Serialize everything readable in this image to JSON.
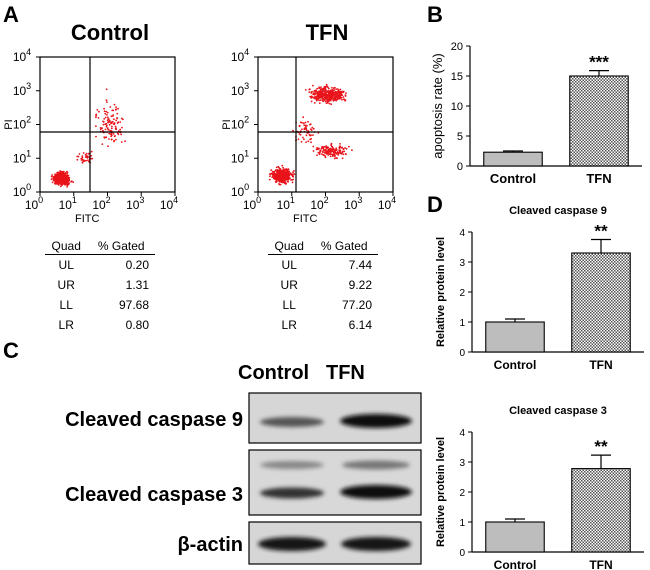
{
  "panels": {
    "a": "A",
    "b": "B",
    "c": "C",
    "d": "D"
  },
  "flow": {
    "xlabel": "FITC",
    "ylabel": "PI",
    "tick_base": "10",
    "tick_exps": [
      "0",
      "1",
      "2",
      "3",
      "4"
    ],
    "table_header": {
      "quad": "Quad",
      "gated": "% Gated"
    },
    "plots": [
      {
        "title": "Control",
        "rows": [
          [
            "UL",
            "0.20"
          ],
          [
            "UR",
            "1.31"
          ],
          [
            "LL",
            "97.68"
          ],
          [
            "LR",
            "0.80"
          ]
        ]
      },
      {
        "title": "TFN",
        "rows": [
          [
            "UL",
            "7.44"
          ],
          [
            "UR",
            "9.22"
          ],
          [
            "LL",
            "77.20"
          ],
          [
            "LR",
            "6.14"
          ]
        ]
      }
    ]
  },
  "blot": {
    "columns": [
      "Control",
      "TFN"
    ],
    "rows": [
      "Cleaved caspase 9",
      "Cleaved caspase 3",
      "β-actin"
    ]
  },
  "chart_data": [
    {
      "type": "bar",
      "categories": [
        "Control",
        "TFN"
      ],
      "values": [
        2.3,
        15.0
      ],
      "errors": [
        0.2,
        0.9
      ],
      "annotations": [
        "",
        "***"
      ],
      "title": "",
      "xlabel": "",
      "ylabel": "apoptosis rate (%)",
      "ylim": [
        0,
        20
      ],
      "yticks": [
        0,
        5,
        10,
        15,
        20
      ]
    },
    {
      "type": "bar",
      "categories": [
        "Control",
        "TFN"
      ],
      "values": [
        1.0,
        3.3
      ],
      "errors": [
        0.1,
        0.45
      ],
      "annotations": [
        "",
        "**"
      ],
      "title": "Cleaved caspase 9",
      "xlabel": "",
      "ylabel": "Relative protein level",
      "ylim": [
        0,
        4
      ],
      "yticks": [
        0,
        1,
        2,
        3,
        4
      ]
    },
    {
      "type": "bar",
      "categories": [
        "Control",
        "TFN"
      ],
      "values": [
        1.0,
        2.78
      ],
      "errors": [
        0.1,
        0.45
      ],
      "annotations": [
        "",
        "**"
      ],
      "title": "Cleaved caspase 3",
      "xlabel": "",
      "ylabel": "Relative protein level",
      "ylim": [
        0,
        4
      ],
      "yticks": [
        0,
        1,
        2,
        3,
        4
      ]
    }
  ],
  "colors": {
    "dots": "#e8141a",
    "bar_fill": "#bdbdbd",
    "blot_bg": "#d6d6d6",
    "band": "#1a1a1a"
  }
}
